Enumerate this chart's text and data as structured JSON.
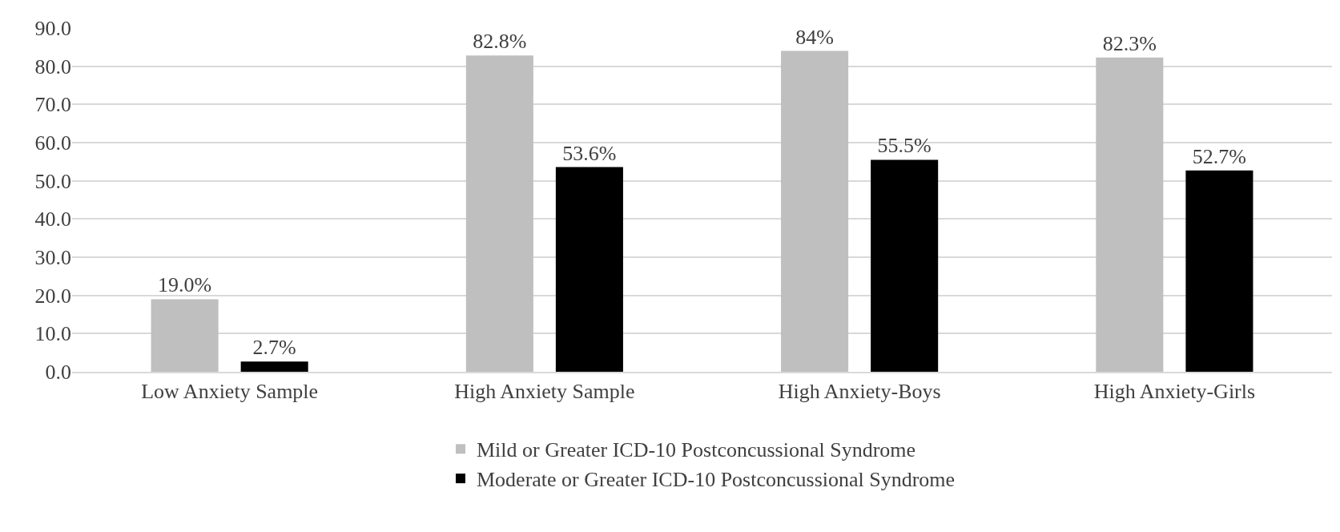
{
  "chart_data": {
    "type": "bar",
    "categories": [
      "Low Anxiety Sample",
      "High Anxiety Sample",
      "High Anxiety-Boys",
      "High Anxiety-Girls"
    ],
    "series": [
      {
        "name": "Mild or Greater ICD-10 Postconcussional Syndrome",
        "color": "#bfbfbf",
        "values": [
          19.0,
          82.8,
          84,
          82.3
        ],
        "value_labels": [
          "19.0%",
          "82.8%",
          "84%",
          "82.3%"
        ]
      },
      {
        "name": "Moderate or Greater ICD-10 Postconcussional Syndrome",
        "color": "#000000",
        "values": [
          2.7,
          53.6,
          55.5,
          52.7
        ],
        "value_labels": [
          "2.7%",
          "53.6%",
          "55.5%",
          "52.7%"
        ]
      }
    ],
    "ylim": [
      0,
      90
    ],
    "yticks": [
      {
        "value": 0,
        "label": "0.0"
      },
      {
        "value": 10,
        "label": "10.0"
      },
      {
        "value": 20,
        "label": "20.0"
      },
      {
        "value": 30,
        "label": "30.0"
      },
      {
        "value": 40,
        "label": "40.0"
      },
      {
        "value": 50,
        "label": "50.0"
      },
      {
        "value": 60,
        "label": "60.0"
      },
      {
        "value": 70,
        "label": "70.0"
      },
      {
        "value": 80,
        "label": "80.0"
      },
      {
        "value": 90,
        "label": "90.0"
      }
    ],
    "grid": "y",
    "legend": "bottom"
  }
}
